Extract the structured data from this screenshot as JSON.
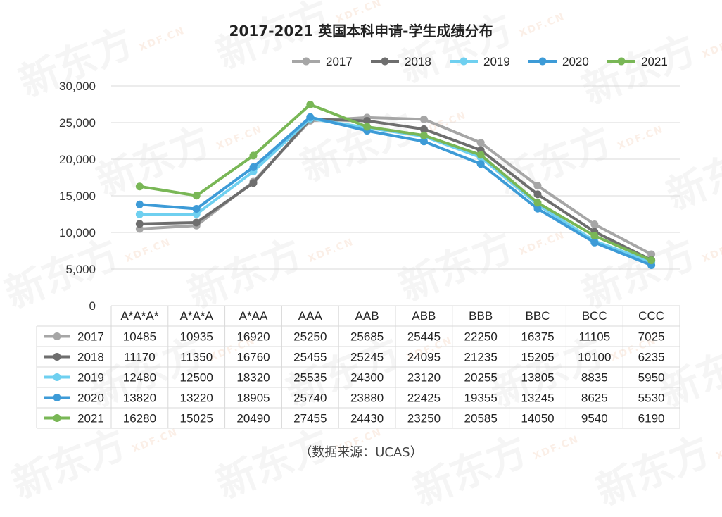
{
  "watermark": {
    "brand": "新东方",
    "domain": "XDF.CN"
  },
  "source_note": "（数据来源：UCAS）",
  "colors": {
    "2017": "#a6a6a6",
    "2018": "#6e6e6e",
    "2019": "#6fd0f0",
    "2020": "#3d9bd7",
    "2021": "#79b756",
    "grid": "#d9d9d9"
  },
  "chart_data": {
    "type": "line",
    "title": "2017-2021 英国本科申请-学生成绩分布",
    "xlabel": "",
    "ylabel": "",
    "ylim": [
      0,
      30000
    ],
    "yticks": [
      "0",
      "5,000",
      "10,000",
      "15,000",
      "20,000",
      "25,000",
      "30,000"
    ],
    "grid": true,
    "legend_position": "top-right",
    "categories": [
      "A*A*A*",
      "A*A*A",
      "A*AA",
      "AAA",
      "AAB",
      "ABB",
      "BBB",
      "BBC",
      "BCC",
      "CCC"
    ],
    "series": [
      {
        "name": "2017",
        "values": [
          10485,
          10935,
          16920,
          25250,
          25685,
          25445,
          22250,
          16375,
          11105,
          7025
        ]
      },
      {
        "name": "2018",
        "values": [
          11170,
          11350,
          16760,
          25455,
          25245,
          24095,
          21235,
          15205,
          10100,
          6235
        ]
      },
      {
        "name": "2019",
        "values": [
          12480,
          12500,
          18320,
          25535,
          24300,
          23120,
          20255,
          13805,
          8835,
          5950
        ]
      },
      {
        "name": "2020",
        "values": [
          13820,
          13220,
          18905,
          25740,
          23880,
          22425,
          19355,
          13245,
          8625,
          5530
        ]
      },
      {
        "name": "2021",
        "values": [
          16280,
          15025,
          20490,
          27455,
          24430,
          23250,
          20585,
          14050,
          9540,
          6190
        ]
      }
    ]
  }
}
